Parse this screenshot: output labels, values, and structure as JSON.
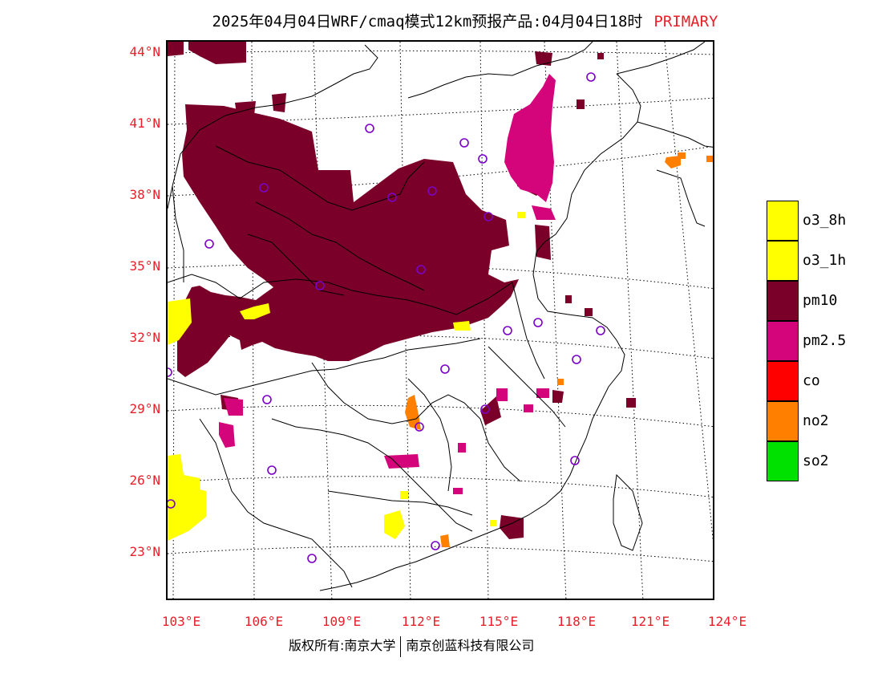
{
  "header": {
    "title": "2025年04月04日WRF/cmaq模式12km预报产品:04月04日18时",
    "tag": "PRIMARY",
    "tag_color": "#e8202a"
  },
  "axes": {
    "lat_labels": [
      "44°N",
      "41°N",
      "38°N",
      "35°N",
      "32°N",
      "29°N",
      "26°N",
      "23°N"
    ],
    "lon_labels": [
      "103°E",
      "106°E",
      "109°E",
      "112°E",
      "115°E",
      "118°E",
      "121°E",
      "124°E"
    ],
    "label_color": "#e8202a"
  },
  "legend": {
    "items": [
      {
        "label": "o3_8h",
        "color": "#ffff00"
      },
      {
        "label": "o3_1h",
        "color": "#ffff00"
      },
      {
        "label": "pm10",
        "color": "#7b0029"
      },
      {
        "label": "pm2.5",
        "color": "#d4047a"
      },
      {
        "label": "co",
        "color": "#ff0000"
      },
      {
        "label": "no2",
        "color": "#ff7f00"
      },
      {
        "label": "so2",
        "color": "#00e100"
      }
    ]
  },
  "footer": {
    "left": "版权所有:南京大学",
    "right": "南京创蓝科技有限公司"
  },
  "map": {
    "station_marker_color": "#7a00c8",
    "border_color": "#000000"
  }
}
